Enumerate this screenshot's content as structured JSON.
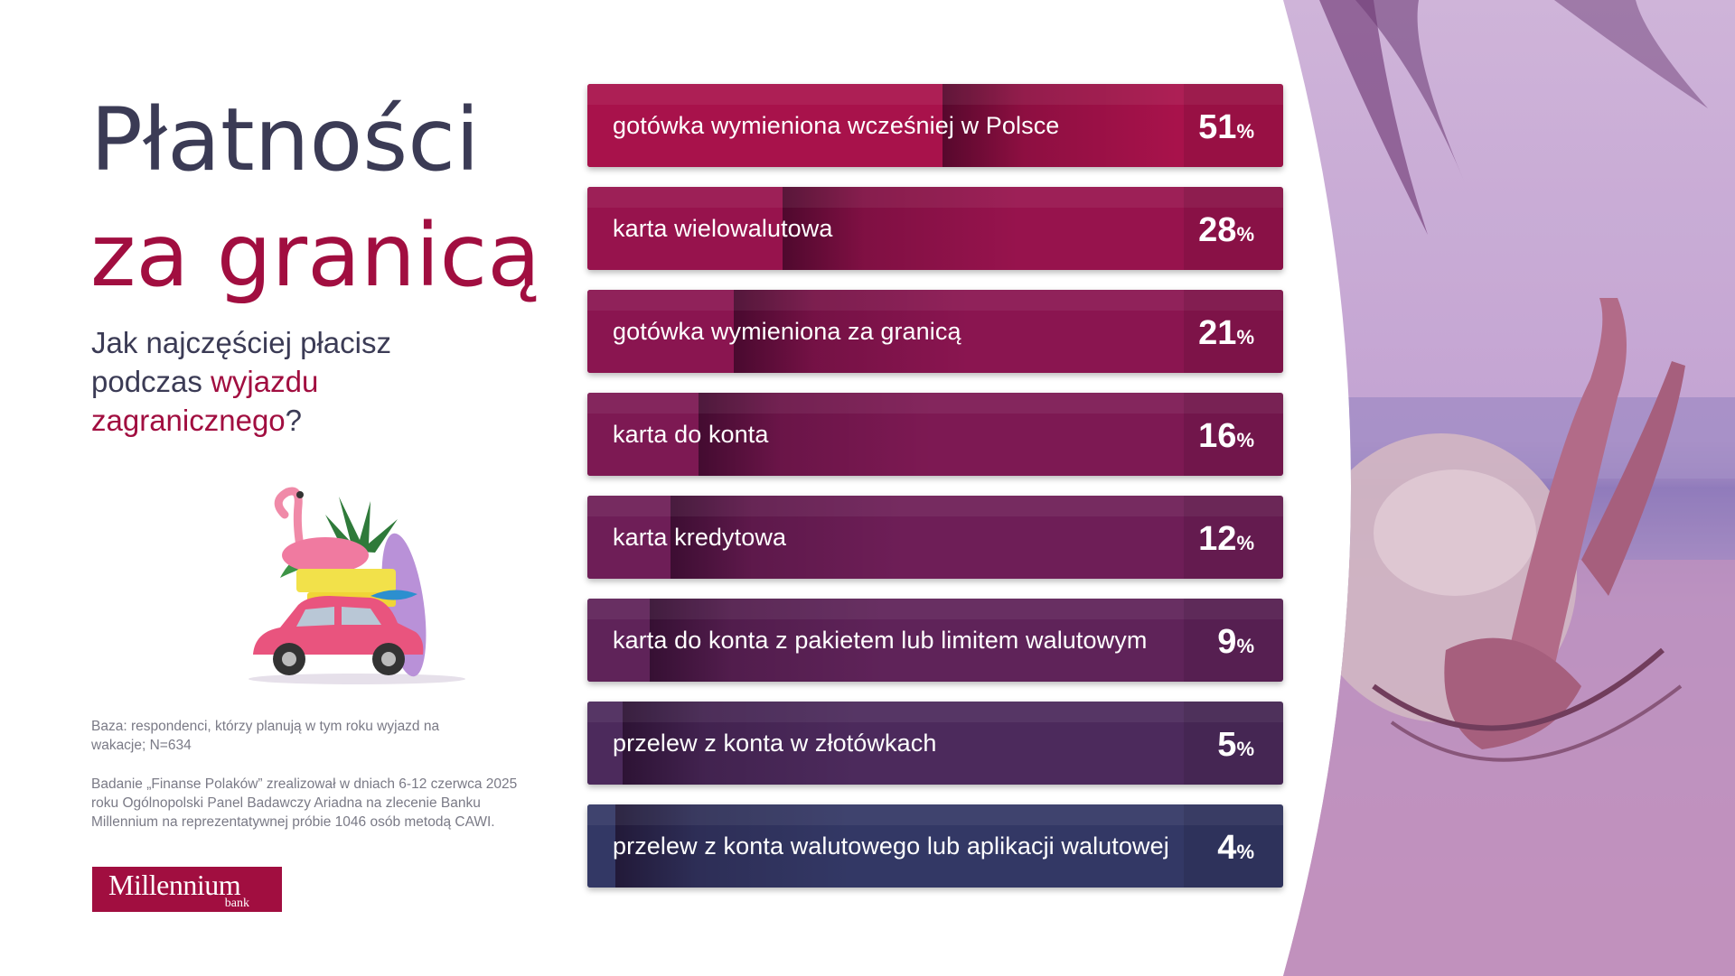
{
  "heading": {
    "line1": "Płatności",
    "line2": "za granicą"
  },
  "question": {
    "part1": "Jak najczęściej płacisz podczas ",
    "highlight": "wyjazdu zagranicznego",
    "part2": "?"
  },
  "notes": {
    "base": "Baza: respondenci, którzy planują w tym roku wyjazd na wakacje; N=634",
    "study": "Badanie „Finanse Polaków” zrealizował w dniach 6-12 czerwca 2025 roku Ogólnopolski Panel Badawczy Ariadna na zlecenie Banku Millennium na reprezentatywnej próbie 1046 osób metodą CAWI."
  },
  "logo": {
    "name": "Millennium",
    "sub": "bank"
  },
  "percent_sign": "%",
  "colors": {
    "accent": "#a10e40",
    "title": "#3b3b55",
    "note": "#7a7a86"
  },
  "chart_data": {
    "type": "bar",
    "orientation": "horizontal",
    "categories": [
      "gotówka wymieniona wcześniej w Polsce",
      "karta wielowalutowa",
      "gotówka wymieniona za granicą",
      "karta do konta",
      "karta kredytowa",
      "karta do konta z pakietem lub limitem walutowym",
      "przelew z konta w złotówkach",
      "przelew z konta walutowego lub aplikacji walutowej"
    ],
    "values": [
      51,
      28,
      21,
      16,
      12,
      9,
      5,
      4
    ],
    "unit": "%",
    "xlim": [
      0,
      100
    ],
    "bar_colors": [
      "#a8124b",
      "#97134d",
      "#8a1550",
      "#7d1953",
      "#6e1e57",
      "#5f2359",
      "#4c2a5c",
      "#333865"
    ]
  }
}
